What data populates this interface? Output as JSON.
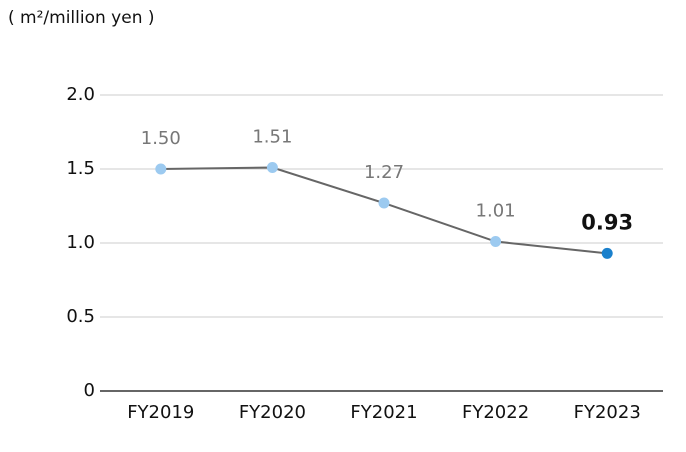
{
  "chart_data": {
    "type": "line",
    "unit_label": "( m²/million yen )",
    "categories": [
      "FY2019",
      "FY2020",
      "FY2021",
      "FY2022",
      "FY2023"
    ],
    "values": [
      1.5,
      1.51,
      1.27,
      1.01,
      0.93
    ],
    "value_labels": [
      "1.50",
      "1.51",
      "1.27",
      "1.01",
      "0.93"
    ],
    "line_color": "#666666",
    "marker_color": "#9ccaf0",
    "highlight_color": "#1a80cc",
    "highlight_index": 4,
    "ylim": [
      0,
      2
    ],
    "yticks": [
      0,
      0.5,
      {
        "value": 1,
        "label": "1.0"
      },
      1.5,
      {
        "value": 2,
        "label": "2.0"
      }
    ],
    "grid": true
  }
}
